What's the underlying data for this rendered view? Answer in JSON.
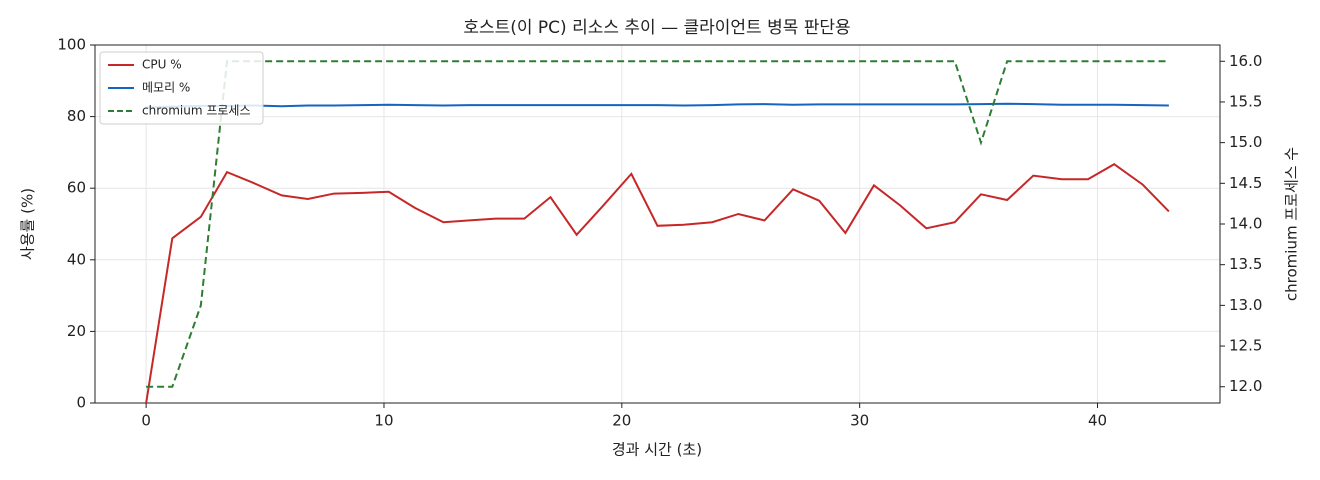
{
  "chart_data": {
    "type": "line",
    "title": "호스트(이 PC) 리소스 추이 — 클라이언트 병목 판단용",
    "xlabel": "경과 시간 (초)",
    "ylabel": "사용률 (%)",
    "y2label": "chromium 프로세스 수",
    "x": [
      0,
      1.1,
      2.3,
      3.4,
      4.5,
      5.7,
      6.8,
      7.9,
      9.1,
      10.2,
      11.3,
      12.5,
      13.6,
      14.7,
      15.9,
      17.0,
      18.1,
      19.2,
      20.4,
      21.5,
      22.6,
      23.8,
      24.9,
      26.0,
      27.2,
      28.3,
      29.4,
      30.6,
      31.7,
      32.8,
      34.0,
      35.1,
      36.2,
      37.3,
      38.5,
      39.6,
      40.7,
      41.9,
      43.0
    ],
    "series": [
      {
        "name": "CPU %",
        "color": "#c62828",
        "values": [
          0,
          46,
          52,
          64.5,
          61.5,
          58,
          57,
          58.5,
          58.7,
          59,
          54.5,
          50.5,
          51,
          51.5,
          51.5,
          57.5,
          47,
          55,
          64,
          49.5,
          49.8,
          50.5,
          52.8,
          51,
          59.7,
          56.5,
          47.5,
          60.8,
          55.2,
          48.8,
          50.5,
          58.3,
          56.7,
          63.5,
          62.5,
          62.5,
          66.7,
          61,
          53.5
        ]
      },
      {
        "name": "메모리 %",
        "color": "#1565c0",
        "values": [
          82.5,
          82.8,
          83,
          83,
          83.1,
          82.9,
          83.1,
          83.1,
          83.2,
          83.3,
          83.2,
          83.1,
          83.2,
          83.2,
          83.2,
          83.2,
          83.2,
          83.2,
          83.2,
          83.2,
          83.1,
          83.2,
          83.4,
          83.5,
          83.3,
          83.4,
          83.4,
          83.4,
          83.4,
          83.4,
          83.4,
          83.5,
          83.6,
          83.5,
          83.3,
          83.3,
          83.3,
          83.2,
          83.1
        ]
      },
      {
        "name": "chromium 프로세스",
        "color": "#2e7d32",
        "dashed": true,
        "axis": "y2",
        "values": [
          12,
          12,
          13,
          16,
          16,
          16,
          16,
          16,
          16,
          16,
          16,
          16,
          16,
          16,
          16,
          16,
          16,
          16,
          16,
          16,
          16,
          16,
          16,
          16,
          16,
          16,
          16,
          16,
          16,
          16,
          16,
          15,
          16,
          16,
          16,
          16,
          16,
          16,
          16
        ]
      }
    ],
    "xlim": [
      -2.15,
      45.15
    ],
    "xticks": [
      0,
      10,
      20,
      30,
      40
    ],
    "ylim": [
      0,
      100
    ],
    "yticks": [
      0,
      20,
      40,
      60,
      80,
      100
    ],
    "y2lim": [
      11.8,
      16.2
    ],
    "y2ticks": [
      {
        "value": 12,
        "label": "12.0"
      },
      {
        "value": 12.5,
        "label": "12.5"
      },
      {
        "value": 13,
        "label": "13.0"
      },
      {
        "value": 13.5,
        "label": "13.5"
      },
      {
        "value": 14,
        "label": "14.0"
      },
      {
        "value": 14.5,
        "label": "14.5"
      },
      {
        "value": 15,
        "label": "15.0"
      },
      {
        "value": 15.5,
        "label": "15.5"
      },
      {
        "value": 16,
        "label": "16.0"
      }
    ],
    "grid": true,
    "legend": "upper-left"
  }
}
